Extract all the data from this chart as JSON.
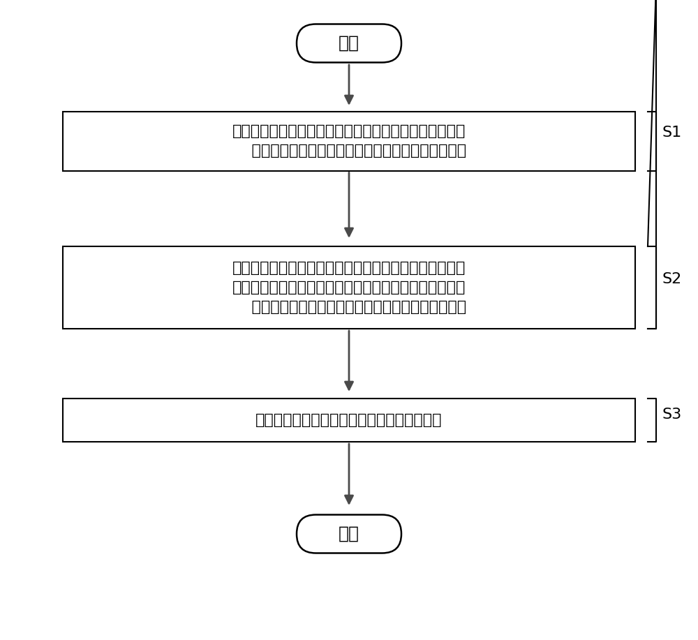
{
  "bg_color": "#ffffff",
  "border_color": "#000000",
  "arrow_color": "#4a4a4a",
  "text_color": "#000000",
  "label_color": "#000000",
  "start_end_text": [
    "开始",
    "结束"
  ],
  "box_texts": [
    "获取压缩机的实际吸气压力值、实际排气压力值、室外冷\n    凝器的实际进口气压值以及压缩机的实际轴承偏移量",
    "判断实际吸气压力值是否在基于设定吸气压力值确定的合\n理吸气压力范围内，判断实际排气压力值是否大于实际进\n    口气压值，判断实际轴承偏移量是否小于设定偏移量",
    "基于判断结果对负载平衡阀选择性地进行控制"
  ],
  "step_labels": [
    "S1",
    "S2",
    "S3"
  ],
  "font_size_box": 16,
  "font_size_start_end": 18,
  "font_size_label": 16
}
